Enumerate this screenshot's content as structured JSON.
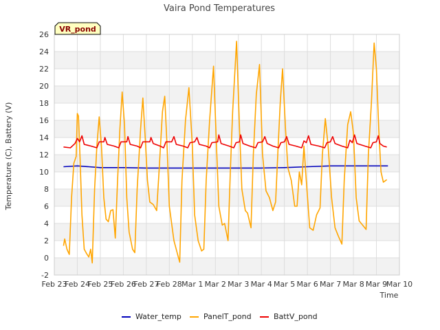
{
  "chart_data": {
    "type": "line",
    "title": "Vaira Pond Temperatures",
    "xlabel": "Time",
    "ylabel": "Temperature (C), Battery (V)",
    "badge": "VR_pond",
    "ylim": [
      -2,
      26
    ],
    "yticks": [
      -2,
      0,
      2,
      4,
      6,
      8,
      10,
      12,
      14,
      16,
      18,
      20,
      22,
      24,
      26
    ],
    "xlim": [
      0,
      15
    ],
    "xticks": [
      {
        "pos": 0,
        "label": "Feb 23"
      },
      {
        "pos": 1,
        "label": "Feb 24"
      },
      {
        "pos": 2,
        "label": "Feb 25"
      },
      {
        "pos": 3,
        "label": "Feb 26"
      },
      {
        "pos": 4,
        "label": "Feb 27"
      },
      {
        "pos": 5,
        "label": "Feb 28"
      },
      {
        "pos": 6,
        "label": "Mar 1"
      },
      {
        "pos": 7,
        "label": "Mar 2"
      },
      {
        "pos": 8,
        "label": "Mar 3"
      },
      {
        "pos": 9,
        "label": "Mar 4"
      },
      {
        "pos": 10,
        "label": "Mar 5"
      },
      {
        "pos": 11,
        "label": "Mar 6"
      },
      {
        "pos": 12,
        "label": "Mar 7"
      },
      {
        "pos": 13,
        "label": "Mar 8"
      },
      {
        "pos": 14,
        "label": "Mar 9"
      },
      {
        "pos": 15,
        "label": "Mar 10"
      }
    ],
    "grid": true,
    "legend_position": "bottom",
    "series": [
      {
        "name": "Water_temp",
        "color": "#0000bb",
        "points": [
          [
            0.4,
            10.6
          ],
          [
            1,
            10.7
          ],
          [
            1.5,
            10.6
          ],
          [
            2,
            10.5
          ],
          [
            3,
            10.5
          ],
          [
            4,
            10.45
          ],
          [
            5,
            10.45
          ],
          [
            6,
            10.45
          ],
          [
            7,
            10.45
          ],
          [
            8,
            10.45
          ],
          [
            9,
            10.45
          ],
          [
            10,
            10.5
          ],
          [
            11,
            10.6
          ],
          [
            12,
            10.7
          ],
          [
            13,
            10.7
          ],
          [
            14,
            10.7
          ],
          [
            14.5,
            10.7
          ]
        ]
      },
      {
        "name": "PanelT_pond",
        "color": "#ffa500",
        "points": [
          [
            0.4,
            1.4
          ],
          [
            0.45,
            2.2
          ],
          [
            0.55,
            1.0
          ],
          [
            0.65,
            0.4
          ],
          [
            0.75,
            7.0
          ],
          [
            0.85,
            11.0
          ],
          [
            0.95,
            11.8
          ],
          [
            1.0,
            16.8
          ],
          [
            1.05,
            16.5
          ],
          [
            1.12,
            11.5
          ],
          [
            1.2,
            5.0
          ],
          [
            1.3,
            1.0
          ],
          [
            1.4,
            0.5
          ],
          [
            1.5,
            0.1
          ],
          [
            1.58,
            1.0
          ],
          [
            1.65,
            -0.6
          ],
          [
            1.75,
            8.0
          ],
          [
            1.85,
            13.0
          ],
          [
            1.95,
            16.4
          ],
          [
            2.05,
            13.0
          ],
          [
            2.15,
            7.0
          ],
          [
            2.25,
            4.5
          ],
          [
            2.35,
            4.2
          ],
          [
            2.45,
            5.5
          ],
          [
            2.55,
            5.6
          ],
          [
            2.65,
            2.3
          ],
          [
            2.75,
            9.0
          ],
          [
            2.85,
            15.0
          ],
          [
            2.95,
            19.3
          ],
          [
            3.05,
            15.5
          ],
          [
            3.15,
            7.0
          ],
          [
            3.25,
            3.0
          ],
          [
            3.4,
            1.0
          ],
          [
            3.5,
            0.6
          ],
          [
            3.6,
            8.0
          ],
          [
            3.75,
            15.0
          ],
          [
            3.85,
            18.6
          ],
          [
            3.95,
            14.0
          ],
          [
            4.05,
            9.0
          ],
          [
            4.15,
            6.5
          ],
          [
            4.3,
            6.2
          ],
          [
            4.45,
            5.5
          ],
          [
            4.55,
            10.0
          ],
          [
            4.7,
            17.0
          ],
          [
            4.8,
            18.8
          ],
          [
            4.9,
            13.0
          ],
          [
            5.0,
            6.0
          ],
          [
            5.2,
            2.0
          ],
          [
            5.35,
            0.5
          ],
          [
            5.45,
            -0.5
          ],
          [
            5.55,
            9.0
          ],
          [
            5.7,
            16.0
          ],
          [
            5.85,
            19.8
          ],
          [
            6.0,
            13.0
          ],
          [
            6.1,
            5.0
          ],
          [
            6.25,
            2.0
          ],
          [
            6.4,
            0.8
          ],
          [
            6.5,
            1.0
          ],
          [
            6.6,
            9.0
          ],
          [
            6.75,
            16.0
          ],
          [
            6.92,
            22.3
          ],
          [
            7.05,
            13.0
          ],
          [
            7.15,
            6.0
          ],
          [
            7.3,
            3.8
          ],
          [
            7.4,
            4.0
          ],
          [
            7.55,
            2.0
          ],
          [
            7.65,
            10.0
          ],
          [
            7.75,
            17.0
          ],
          [
            7.92,
            25.2
          ],
          [
            8.05,
            15.0
          ],
          [
            8.15,
            8.0
          ],
          [
            8.3,
            5.5
          ],
          [
            8.4,
            5.2
          ],
          [
            8.55,
            3.5
          ],
          [
            8.65,
            12.0
          ],
          [
            8.78,
            19.0
          ],
          [
            8.92,
            22.5
          ],
          [
            9.05,
            12.0
          ],
          [
            9.2,
            7.8
          ],
          [
            9.35,
            7.0
          ],
          [
            9.5,
            5.5
          ],
          [
            9.62,
            6.5
          ],
          [
            9.72,
            12.5
          ],
          [
            9.82,
            18.0
          ],
          [
            9.92,
            22.0
          ],
          [
            10.05,
            15.0
          ],
          [
            10.15,
            10.5
          ],
          [
            10.3,
            9.0
          ],
          [
            10.45,
            6.0
          ],
          [
            10.55,
            6.0
          ],
          [
            10.65,
            10.0
          ],
          [
            10.75,
            8.5
          ],
          [
            10.85,
            13.0
          ],
          [
            10.95,
            9.0
          ],
          [
            11.1,
            3.5
          ],
          [
            11.25,
            3.2
          ],
          [
            11.4,
            5.0
          ],
          [
            11.55,
            5.8
          ],
          [
            11.65,
            12.0
          ],
          [
            11.78,
            16.2
          ],
          [
            11.9,
            13.0
          ],
          [
            12.05,
            7.0
          ],
          [
            12.2,
            3.5
          ],
          [
            12.35,
            2.5
          ],
          [
            12.5,
            1.6
          ],
          [
            12.6,
            9.0
          ],
          [
            12.75,
            15.5
          ],
          [
            12.88,
            17.0
          ],
          [
            13.0,
            14.5
          ],
          [
            13.12,
            7.0
          ],
          [
            13.25,
            4.3
          ],
          [
            13.4,
            3.8
          ],
          [
            13.55,
            3.3
          ],
          [
            13.65,
            12.0
          ],
          [
            13.78,
            18.0
          ],
          [
            13.9,
            25.0
          ],
          [
            14.0,
            22.0
          ],
          [
            14.1,
            15.0
          ],
          [
            14.2,
            10.0
          ],
          [
            14.3,
            8.8
          ],
          [
            14.45,
            9.1
          ]
        ]
      },
      {
        "name": "BattV_pond",
        "color": "#ee0000",
        "points": [
          [
            0.4,
            12.9
          ],
          [
            0.7,
            12.8
          ],
          [
            0.9,
            13.3
          ],
          [
            1.0,
            13.9
          ],
          [
            1.1,
            13.5
          ],
          [
            1.2,
            14.2
          ],
          [
            1.3,
            13.2
          ],
          [
            1.6,
            13.0
          ],
          [
            1.85,
            12.8
          ],
          [
            1.95,
            13.5
          ],
          [
            2.15,
            13.5
          ],
          [
            2.2,
            14.0
          ],
          [
            2.3,
            13.2
          ],
          [
            2.6,
            13.0
          ],
          [
            2.8,
            12.8
          ],
          [
            2.9,
            13.5
          ],
          [
            3.15,
            13.5
          ],
          [
            3.2,
            14.1
          ],
          [
            3.3,
            13.2
          ],
          [
            3.6,
            13.0
          ],
          [
            3.75,
            12.8
          ],
          [
            3.85,
            13.5
          ],
          [
            4.15,
            13.5
          ],
          [
            4.2,
            14.0
          ],
          [
            4.3,
            13.3
          ],
          [
            4.6,
            13.0
          ],
          [
            4.75,
            12.8
          ],
          [
            4.85,
            13.5
          ],
          [
            5.1,
            13.5
          ],
          [
            5.2,
            14.1
          ],
          [
            5.3,
            13.2
          ],
          [
            5.6,
            13.0
          ],
          [
            5.8,
            12.8
          ],
          [
            5.9,
            13.4
          ],
          [
            6.1,
            13.5
          ],
          [
            6.2,
            14.0
          ],
          [
            6.3,
            13.2
          ],
          [
            6.6,
            13.0
          ],
          [
            6.75,
            12.8
          ],
          [
            6.85,
            13.4
          ],
          [
            7.1,
            13.5
          ],
          [
            7.15,
            14.3
          ],
          [
            7.25,
            13.3
          ],
          [
            7.6,
            13.0
          ],
          [
            7.8,
            12.8
          ],
          [
            7.9,
            13.4
          ],
          [
            8.05,
            13.5
          ],
          [
            8.1,
            14.3
          ],
          [
            8.2,
            13.3
          ],
          [
            8.5,
            13.0
          ],
          [
            8.75,
            12.8
          ],
          [
            8.85,
            13.4
          ],
          [
            9.05,
            13.5
          ],
          [
            9.15,
            14.1
          ],
          [
            9.25,
            13.3
          ],
          [
            9.5,
            13.0
          ],
          [
            9.75,
            12.8
          ],
          [
            9.85,
            13.4
          ],
          [
            10.0,
            13.5
          ],
          [
            10.1,
            14.1
          ],
          [
            10.2,
            13.2
          ],
          [
            10.5,
            13.0
          ],
          [
            10.75,
            12.8
          ],
          [
            10.85,
            13.6
          ],
          [
            10.95,
            13.4
          ],
          [
            11.05,
            14.2
          ],
          [
            11.15,
            13.2
          ],
          [
            11.5,
            13.0
          ],
          [
            11.75,
            12.8
          ],
          [
            11.85,
            13.4
          ],
          [
            12.0,
            13.5
          ],
          [
            12.1,
            14.1
          ],
          [
            12.2,
            13.3
          ],
          [
            12.5,
            13.0
          ],
          [
            12.75,
            12.8
          ],
          [
            12.85,
            13.7
          ],
          [
            12.95,
            13.4
          ],
          [
            13.05,
            14.3
          ],
          [
            13.15,
            13.3
          ],
          [
            13.5,
            13.0
          ],
          [
            13.75,
            12.8
          ],
          [
            13.85,
            13.4
          ],
          [
            14.0,
            13.5
          ],
          [
            14.08,
            14.2
          ],
          [
            14.15,
            13.3
          ],
          [
            14.3,
            13.0
          ],
          [
            14.45,
            12.9
          ]
        ]
      }
    ]
  }
}
